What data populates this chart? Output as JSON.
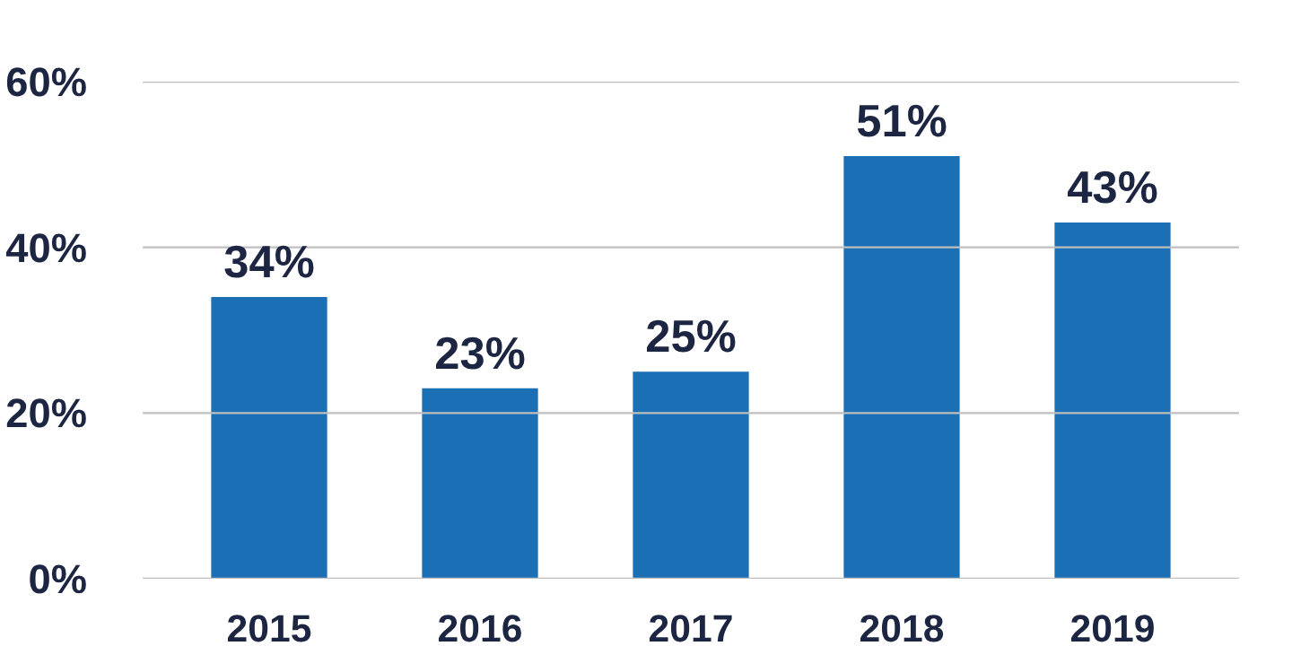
{
  "chart_data": {
    "type": "bar",
    "categories": [
      "2015",
      "2016",
      "2017",
      "2018",
      "2019"
    ],
    "values": [
      34,
      23,
      25,
      51,
      43
    ],
    "color": "#1a6fb5",
    "data_labels": true,
    "value_labels": [
      "34%",
      "23%",
      "25%",
      "51%",
      "43%"
    ],
    "ylim": [
      0,
      60
    ],
    "yticks": [
      {
        "value": 0,
        "label": "0%"
      },
      {
        "value": 20,
        "label": "20%"
      },
      {
        "value": 40,
        "label": "40%"
      },
      {
        "value": 60,
        "label": "60%"
      }
    ],
    "grid": "y"
  }
}
